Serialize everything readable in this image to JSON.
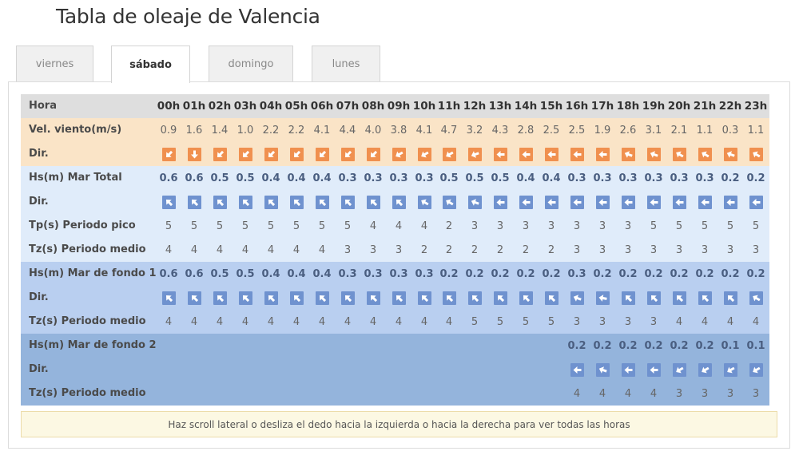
{
  "title": "Tabla de oleaje de Valencia",
  "tabs": [
    {
      "label": "viernes",
      "active": false
    },
    {
      "label": "sábado",
      "active": true
    },
    {
      "label": "domingo",
      "active": false
    },
    {
      "label": "lunes",
      "active": false
    }
  ],
  "colors": {
    "wind_arrow": "#f0904f",
    "wave_arrow": "#6f92cf",
    "header_bg": "#dedede",
    "wind_bg": "#fae4c7",
    "sea_bg": "#e0ecfa",
    "swell1_bg": "#b9cff0",
    "swell2_bg": "#94b4dc"
  },
  "hours": [
    "00h",
    "01h",
    "02h",
    "03h",
    "04h",
    "05h",
    "06h",
    "07h",
    "08h",
    "09h",
    "10h",
    "11h",
    "12h",
    "13h",
    "14h",
    "15h",
    "16h",
    "17h",
    "18h",
    "19h",
    "20h",
    "21h",
    "22h",
    "23h"
  ],
  "rows": [
    {
      "key": "hora",
      "label": "Hora",
      "type": "hours",
      "bg": "header"
    },
    {
      "key": "wind_speed",
      "label": "Vel. viento(m/s)",
      "type": "num",
      "bg": "wind",
      "values": [
        "0.9",
        "1.6",
        "1.4",
        "1.0",
        "2.2",
        "2.2",
        "4.1",
        "4.4",
        "4.0",
        "3.8",
        "4.1",
        "4.7",
        "3.2",
        "4.3",
        "2.8",
        "2.5",
        "2.5",
        "1.9",
        "2.6",
        "3.1",
        "2.1",
        "1.1",
        "0.3",
        "1.1"
      ]
    },
    {
      "key": "wind_dir",
      "label": "Dir.",
      "type": "arrow",
      "arrow": "wind",
      "bg": "wind",
      "directions_deg": [
        225,
        180,
        225,
        225,
        225,
        225,
        225,
        225,
        225,
        240,
        240,
        240,
        250,
        270,
        270,
        270,
        270,
        270,
        290,
        290,
        300,
        300,
        290,
        300
      ]
    },
    {
      "key": "hs_total",
      "label": "Hs(m) Mar Total",
      "type": "bold",
      "bg": "sea",
      "values": [
        "0.6",
        "0.6",
        "0.5",
        "0.5",
        "0.4",
        "0.4",
        "0.4",
        "0.3",
        "0.3",
        "0.3",
        "0.3",
        "0.5",
        "0.5",
        "0.5",
        "0.4",
        "0.4",
        "0.3",
        "0.3",
        "0.3",
        "0.3",
        "0.3",
        "0.3",
        "0.2",
        "0.2"
      ]
    },
    {
      "key": "dir_total",
      "label": "Dir.",
      "type": "arrow",
      "arrow": "wave",
      "bg": "sea",
      "directions_deg": [
        315,
        315,
        315,
        315,
        315,
        315,
        315,
        315,
        315,
        315,
        300,
        300,
        290,
        270,
        270,
        270,
        270,
        270,
        270,
        270,
        270,
        270,
        270,
        270
      ]
    },
    {
      "key": "tp",
      "label": "Tp(s) Periodo pico",
      "type": "num",
      "bg": "sea",
      "values": [
        "5",
        "5",
        "5",
        "5",
        "5",
        "5",
        "5",
        "5",
        "4",
        "4",
        "4",
        "2",
        "3",
        "3",
        "3",
        "3",
        "3",
        "3",
        "3",
        "5",
        "5",
        "5",
        "5",
        "5"
      ]
    },
    {
      "key": "tz",
      "label": "Tz(s) Periodo medio",
      "type": "num",
      "bg": "sea",
      "values": [
        "4",
        "4",
        "4",
        "4",
        "4",
        "4",
        "4",
        "3",
        "3",
        "3",
        "2",
        "2",
        "2",
        "2",
        "2",
        "2",
        "3",
        "3",
        "3",
        "3",
        "3",
        "3",
        "3",
        "3"
      ]
    },
    {
      "key": "hs_swell1",
      "label": "Hs(m) Mar de fondo 1",
      "type": "bold",
      "bg": "swell1",
      "values": [
        "0.6",
        "0.6",
        "0.5",
        "0.5",
        "0.4",
        "0.4",
        "0.4",
        "0.3",
        "0.3",
        "0.3",
        "0.3",
        "0.2",
        "0.2",
        "0.2",
        "0.2",
        "0.2",
        "0.3",
        "0.2",
        "0.2",
        "0.2",
        "0.2",
        "0.2",
        "0.2",
        "0.2"
      ]
    },
    {
      "key": "dir_swell1",
      "label": "Dir.",
      "type": "arrow",
      "arrow": "wave",
      "bg": "swell1",
      "directions_deg": [
        315,
        315,
        315,
        315,
        315,
        315,
        315,
        315,
        315,
        315,
        315,
        315,
        315,
        315,
        315,
        315,
        290,
        280,
        315,
        315,
        315,
        315,
        315,
        300
      ]
    },
    {
      "key": "tz_swell1",
      "label": "Tz(s) Periodo medio",
      "type": "num",
      "bg": "swell1",
      "values": [
        "4",
        "4",
        "4",
        "4",
        "4",
        "4",
        "4",
        "4",
        "4",
        "4",
        "4",
        "4",
        "5",
        "5",
        "5",
        "5",
        "3",
        "3",
        "3",
        "3",
        "4",
        "4",
        "4",
        "4"
      ]
    },
    {
      "key": "hs_swell2",
      "label": "Hs(m) Mar de fondo 2",
      "type": "bold",
      "bg": "swell2",
      "values": [
        "",
        "",
        "",
        "",
        "",
        "",
        "",
        "",
        "",
        "",
        "",
        "",
        "",
        "",
        "",
        "",
        "0.2",
        "0.2",
        "0.2",
        "0.2",
        "0.2",
        "0.2",
        "0.1",
        "0.1"
      ]
    },
    {
      "key": "dir_swell2",
      "label": "Dir.",
      "type": "arrow",
      "arrow": "wave",
      "bg": "swell2",
      "directions_deg": [
        null,
        null,
        null,
        null,
        null,
        null,
        null,
        null,
        null,
        null,
        null,
        null,
        null,
        null,
        null,
        null,
        270,
        290,
        270,
        270,
        240,
        240,
        240,
        240
      ]
    },
    {
      "key": "tz_swell2",
      "label": "Tz(s) Periodo medio",
      "type": "num",
      "bg": "swell2",
      "values": [
        "",
        "",
        "",
        "",
        "",
        "",
        "",
        "",
        "",
        "",
        "",
        "",
        "",
        "",
        "",
        "",
        "4",
        "4",
        "4",
        "4",
        "3",
        "3",
        "3",
        "3"
      ]
    }
  ],
  "notice": "Haz scroll lateral o desliza el dedo hacia la izquierda o hacia la derecha para ver todas las horas"
}
